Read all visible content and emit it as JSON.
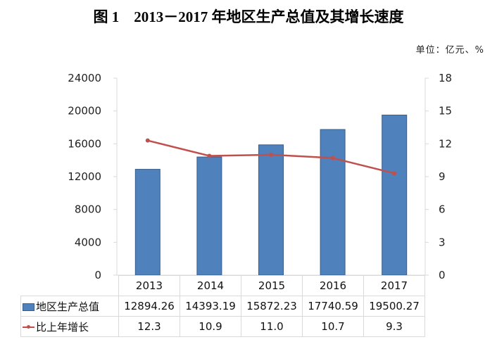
{
  "title": "图 1　2013－2017 年地区生产总值及其增长速度",
  "unit_label": "单位：亿元、%",
  "colors": {
    "bar": "#4f81bd",
    "bar_border": "#385d8a",
    "line": "#c0504d",
    "axis": "#d9d9d9"
  },
  "left_axis_ticks": [
    "24000",
    "20000",
    "16000",
    "12000",
    "8000",
    "4000",
    "0"
  ],
  "right_axis_ticks": [
    "18",
    "15",
    "12",
    "9",
    "6",
    "3",
    "0"
  ],
  "table": {
    "years": [
      "2013",
      "2014",
      "2015",
      "2016",
      "2017"
    ],
    "rows": [
      {
        "label": "地区生产总值",
        "values": [
          "12894.26",
          "14393.19",
          "15872.23",
          "17740.59",
          "19500.27"
        ]
      },
      {
        "label": "比上年增长",
        "values": [
          "12.3",
          "10.9",
          "11.0",
          "10.7",
          "9.3"
        ]
      }
    ]
  },
  "chart_data": {
    "type": "bar",
    "title": "图 1　2013－2017 年地区生产总值及其增长速度",
    "subtitle": "单位：亿元、%",
    "categories": [
      "2013",
      "2014",
      "2015",
      "2016",
      "2017"
    ],
    "series": [
      {
        "name": "地区生产总值",
        "type": "bar",
        "axis": "left",
        "values": [
          12894.26,
          14393.19,
          15872.23,
          17740.59,
          19500.27
        ]
      },
      {
        "name": "比上年增长",
        "type": "line",
        "axis": "right",
        "values": [
          12.3,
          10.9,
          11.0,
          10.7,
          9.3
        ]
      }
    ],
    "xlabel": "",
    "ylabel": "亿元",
    "y2label": "%",
    "ylim": [
      0,
      24000
    ],
    "y2lim": [
      0,
      18
    ],
    "yticks": [
      0,
      4000,
      8000,
      12000,
      16000,
      20000,
      24000
    ],
    "y2ticks": [
      0,
      3,
      6,
      9,
      12,
      15,
      18
    ],
    "grid": false,
    "legend_position": "data-table"
  }
}
